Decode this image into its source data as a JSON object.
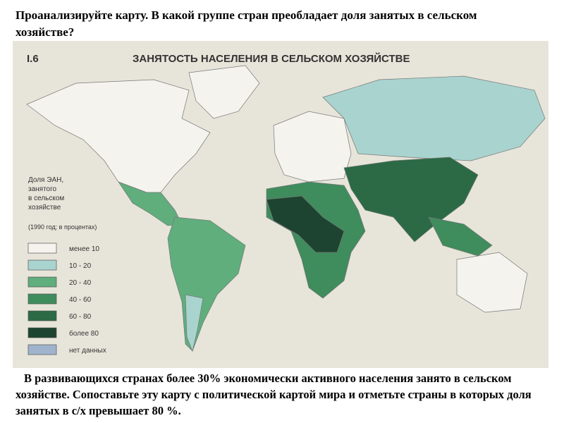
{
  "question": "Проанализируйте карту. В какой группе стран преобладает доля занятых в сельском хозяйстве?",
  "map": {
    "label": "I.6",
    "title": "ЗАНЯТОСТЬ НАСЕЛЕНИЯ В СЕЛЬСКОМ ХОЗЯЙСТВЕ",
    "legend": {
      "title": [
        "Доля ЭАН,",
        "занятого",
        "в сельском",
        "хозяйстве"
      ],
      "note": "(1990 год; в процентах)",
      "items": [
        {
          "label": "менее 10",
          "color": "#f4f3ee"
        },
        {
          "label": "10 - 20",
          "color": "#a9d3cf"
        },
        {
          "label": "20 - 40",
          "color": "#5fae7c"
        },
        {
          "label": "40 - 60",
          "color": "#3f8c5d"
        },
        {
          "label": "60 - 80",
          "color": "#2b6a45"
        },
        {
          "label": "более 80",
          "color": "#1d4430"
        },
        {
          "label": "нет данных",
          "color": "#9fb4cc"
        }
      ]
    }
  },
  "answer": "В развивающихся странах более 30% экономически активного населения занято в сельском хозяйстве. Сопоставьте эту карту с политической картой мира и отметьте страны в которых доля занятых в с/х превышает 80 %."
}
